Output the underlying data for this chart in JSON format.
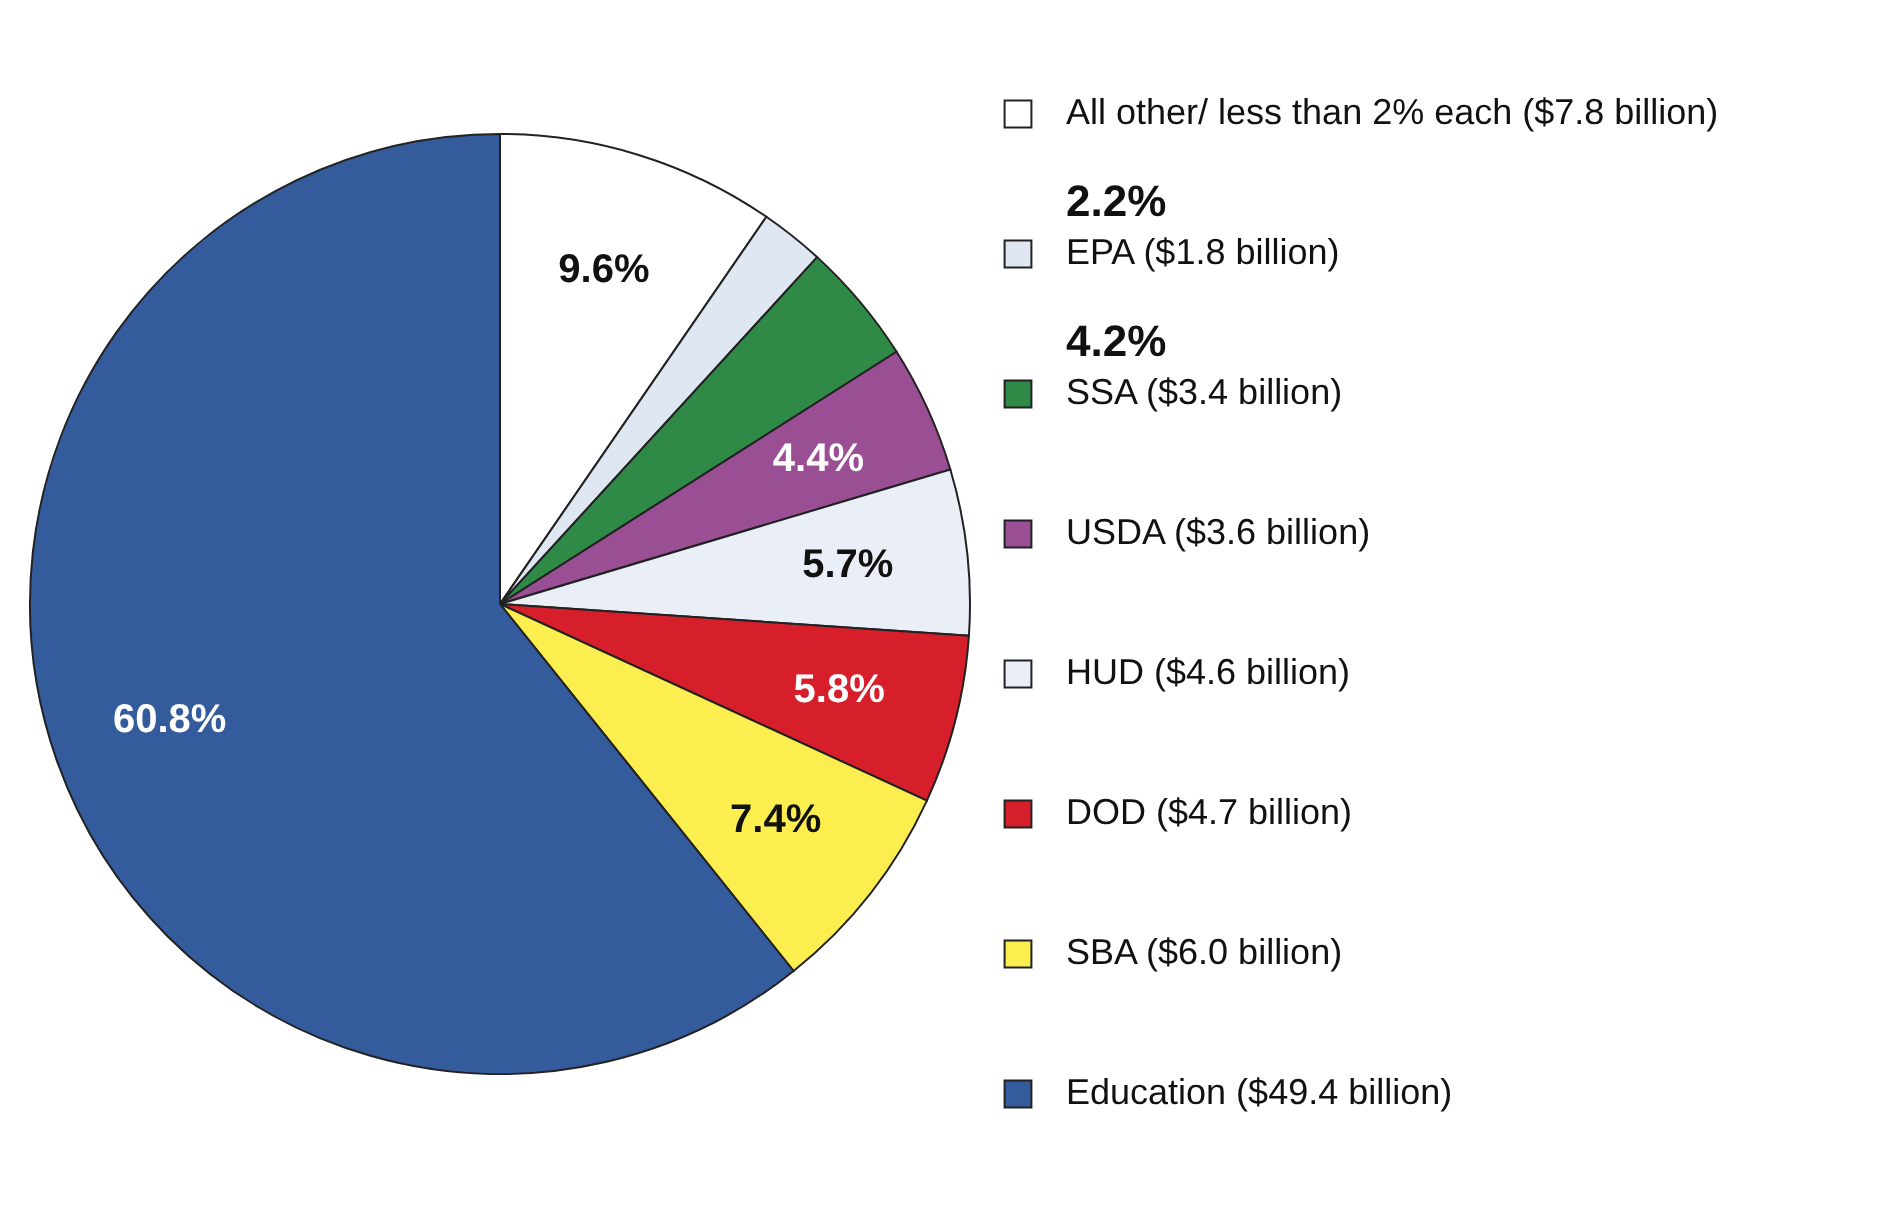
{
  "chart_data": {
    "type": "pie",
    "categories": [
      "All other/ less than 2% each ($7.8 billion)",
      "EPA ($1.8 billion)",
      "SSA ($3.4 billion)",
      "USDA ($3.6 billion)",
      "HUD ($4.6 billion)",
      "DOD ($4.7 billion)",
      "SBA ($6.0 billion)",
      "Education ($49.4 billion)"
    ],
    "values": [
      9.6,
      2.2,
      4.2,
      4.4,
      5.7,
      5.8,
      7.4,
      60.8
    ],
    "value_labels": [
      "9.6%",
      "2.2%",
      "4.2%",
      "4.4%",
      "5.7%",
      "5.8%",
      "7.4%",
      "60.8%"
    ],
    "colors": [
      "#ffffff",
      "#dfe7f3",
      "#2f8a47",
      "#9a4f94",
      "#e9eef7",
      "#d71f2c",
      "#fcee4f",
      "#345b9b"
    ],
    "legend": "right"
  }
}
